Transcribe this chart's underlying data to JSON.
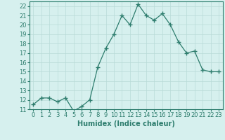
{
  "xlabel": "Humidex (Indice chaleur)",
  "x_values": [
    0,
    1,
    2,
    3,
    4,
    5,
    6,
    7,
    8,
    9,
    10,
    11,
    12,
    13,
    14,
    15,
    16,
    17,
    18,
    19,
    20,
    21,
    22,
    23
  ],
  "y_values": [
    11.5,
    12.2,
    12.2,
    11.8,
    12.2,
    10.8,
    11.3,
    12.0,
    15.5,
    17.5,
    19.0,
    21.0,
    20.0,
    22.2,
    21.0,
    20.5,
    21.2,
    20.0,
    18.2,
    17.0,
    17.2,
    15.2,
    15.0,
    15.0
  ],
  "line_color": "#2e7d6e",
  "marker": "+",
  "marker_size": 4,
  "bg_color": "#d6f0ee",
  "grid_color": "#b8dbd8",
  "ylim": [
    11,
    22.5
  ],
  "xlim": [
    -0.5,
    23.5
  ],
  "yticks": [
    11,
    12,
    13,
    14,
    15,
    16,
    17,
    18,
    19,
    20,
    21,
    22
  ],
  "xticks": [
    0,
    1,
    2,
    3,
    4,
    5,
    6,
    7,
    8,
    9,
    10,
    11,
    12,
    13,
    14,
    15,
    16,
    17,
    18,
    19,
    20,
    21,
    22,
    23
  ],
  "tick_color": "#2e7d6e",
  "label_fontsize": 6,
  "xlabel_fontsize": 7,
  "axis_color": "#2e7d6e",
  "line_width": 0.9,
  "markeredgewidth": 1.0
}
